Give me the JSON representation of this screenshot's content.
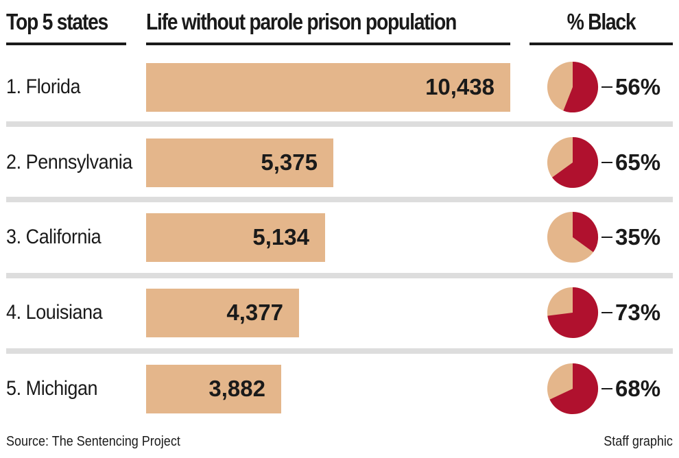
{
  "headers": {
    "states": "Top 5 states",
    "population": "Life without parole prison population",
    "black": "% Black"
  },
  "rows": [
    {
      "rank_label": "1. Florida",
      "value_label": "10,438",
      "pct_label": "56%"
    },
    {
      "rank_label": "2. Pennsylvania",
      "value_label": "5,375",
      "pct_label": "65%"
    },
    {
      "rank_label": "3. California",
      "value_label": "5,134",
      "pct_label": "35%"
    },
    {
      "rank_label": "4. Louisiana",
      "value_label": "4,377",
      "pct_label": "73%"
    },
    {
      "rank_label": "5. Michigan",
      "value_label": "3,882",
      "pct_label": "68%"
    }
  ],
  "footer": {
    "source": "Source: The Sentencing Project",
    "credit": "Staff graphic"
  },
  "colors": {
    "bar": "#e4b68b",
    "pie_black": "#b0112e",
    "pie_other": "#e4b68b",
    "separator": "#dddddd",
    "text": "#1a1a1a"
  },
  "chart_data": {
    "type": "bar",
    "orientation": "horizontal",
    "categories": [
      "Florida",
      "Pennsylvania",
      "California",
      "Louisiana",
      "Michigan"
    ],
    "values": [
      10438,
      5375,
      5134,
      4377,
      3882
    ],
    "percent_black": [
      56,
      65,
      35,
      73,
      68
    ],
    "title": "",
    "xlabel": "",
    "ylabel": "",
    "grid": false,
    "legend": "none"
  }
}
